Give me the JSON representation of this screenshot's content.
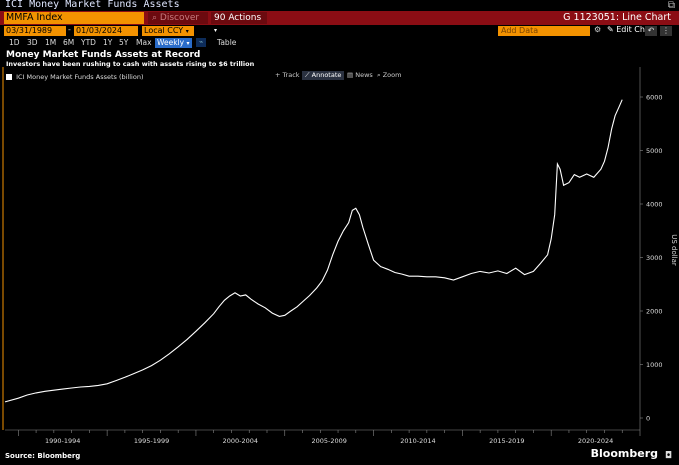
{
  "header": {
    "title": "ICI Money Market Funds Assets",
    "ticker": "MMFA Index",
    "discover": "Discover",
    "actions": "90 Actions",
    "code": "G 1123051: Line Chart"
  },
  "controls": {
    "start_date": "03/31/1989",
    "end_date": "01/03/2024",
    "currency": "Local CCY",
    "add_data": "Add Data",
    "edit_chart": "Edit Chart",
    "ranges": [
      "1D",
      "3D",
      "1M",
      "6M",
      "YTD",
      "1Y",
      "5Y",
      "Max"
    ],
    "frequency": "Weekly",
    "table": "Table"
  },
  "annotation_tools": [
    "Track",
    "Annotate",
    "News",
    "Zoom"
  ],
  "footer": {
    "source": "Source: Bloomberg",
    "brand": "Bloomberg"
  },
  "colors": {
    "accent_orange": "#f39200",
    "command_red": "#8b0d14",
    "line": "#ffffff",
    "background": "#000000"
  },
  "chart_data": {
    "type": "line",
    "title": "Money Market Funds Assets at Record",
    "subtitle": "Investors have been rushing to cash with assets rising to $6 trillion",
    "legend": [
      "ICI Money Market Funds Assets (billion)"
    ],
    "legend_position": "top-left",
    "ylabel": "US dollar",
    "ylim": [
      0,
      6400
    ],
    "yticks": [
      0,
      1000,
      2000,
      3000,
      4000,
      5000,
      6000
    ],
    "xlim": [
      1989.25,
      2025.0
    ],
    "xtick_labels": [
      "1990-1994",
      "1995-1999",
      "2000-2004",
      "2005-2009",
      "2010-2014",
      "2015-2019",
      "2020-2024"
    ],
    "grid": false,
    "series": [
      {
        "name": "ICI Money Market Funds Assets (billion)",
        "x": [
          1989.25,
          1990.0,
          1990.5,
          1991.0,
          1991.5,
          1992.0,
          1992.5,
          1993.0,
          1993.5,
          1994.0,
          1994.5,
          1995.0,
          1995.5,
          1996.0,
          1996.5,
          1997.0,
          1997.5,
          1998.0,
          1998.5,
          1999.0,
          1999.5,
          2000.0,
          2000.5,
          2001.0,
          2001.3,
          2001.6,
          2001.9,
          2002.2,
          2002.5,
          2002.8,
          2003.1,
          2003.5,
          2003.9,
          2004.3,
          2004.7,
          2005.0,
          2005.3,
          2005.7,
          2006.0,
          2006.4,
          2006.8,
          2007.1,
          2007.4,
          2007.7,
          2008.0,
          2008.3,
          2008.6,
          2008.8,
          2009.0,
          2009.2,
          2009.4,
          2009.7,
          2010.0,
          2010.4,
          2010.8,
          2011.2,
          2011.6,
          2012.0,
          2012.5,
          2013.0,
          2013.5,
          2014.0,
          2014.5,
          2015.0,
          2015.5,
          2016.0,
          2016.5,
          2017.0,
          2017.5,
          2018.0,
          2018.5,
          2019.0,
          2019.4,
          2019.8,
          2020.0,
          2020.2,
          2020.35,
          2020.5,
          2020.7,
          2021.0,
          2021.3,
          2021.6,
          2022.0,
          2022.4,
          2022.8,
          2023.0,
          2023.2,
          2023.4,
          2023.6,
          2023.8,
          2024.0
        ],
        "y": [
          300,
          370,
          430,
          470,
          500,
          520,
          540,
          560,
          580,
          590,
          610,
          640,
          700,
          760,
          830,
          900,
          980,
          1080,
          1200,
          1330,
          1470,
          1620,
          1780,
          1950,
          2080,
          2200,
          2280,
          2340,
          2280,
          2300,
          2220,
          2130,
          2060,
          1960,
          1900,
          1920,
          1990,
          2080,
          2170,
          2290,
          2430,
          2560,
          2760,
          3050,
          3300,
          3500,
          3650,
          3880,
          3920,
          3800,
          3560,
          3250,
          2950,
          2830,
          2780,
          2720,
          2690,
          2650,
          2650,
          2640,
          2640,
          2620,
          2580,
          2640,
          2700,
          2740,
          2710,
          2750,
          2700,
          2800,
          2680,
          2740,
          2890,
          3050,
          3350,
          3800,
          4750,
          4650,
          4350,
          4400,
          4550,
          4500,
          4560,
          4500,
          4650,
          4800,
          5050,
          5400,
          5650,
          5800,
          5950
        ]
      }
    ]
  }
}
